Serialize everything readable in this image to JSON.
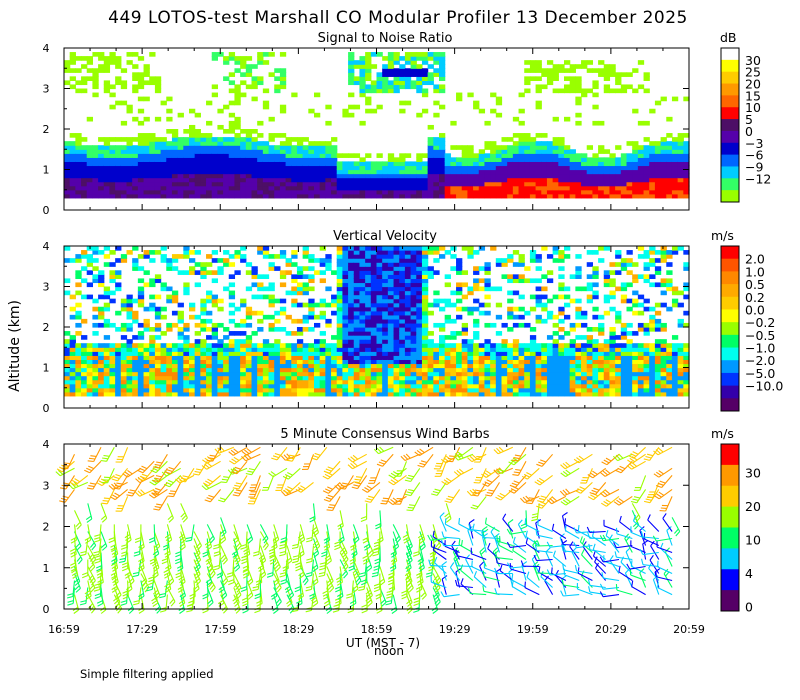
{
  "title": "449 LOTOS-test Marshall CO Modular Profiler 13 December 2025",
  "ylabel": "Altitude (km)",
  "xlabel": "UT  (MST - 7)",
  "xlabel2": "noon",
  "footer": "Simple filtering applied",
  "x_ticks": [
    "16:59",
    "17:29",
    "17:59",
    "18:29",
    "18:59",
    "19:29",
    "19:59",
    "20:29",
    "20:59"
  ],
  "y_ticks": [
    "0",
    "1",
    "2",
    "3",
    "4"
  ],
  "chart_data": [
    {
      "type": "heatmap",
      "title": "Signal to Noise Ratio",
      "units": "dB",
      "x_range_hours": [
        16.983,
        20.983
      ],
      "y_range_km": [
        0,
        4
      ],
      "colorbar_labels": [
        "30",
        "25",
        "20",
        "15",
        "10",
        "5",
        "0",
        "−3",
        "−6",
        "−9",
        "−12"
      ],
      "colorbar_colors": [
        "#ffffff",
        "#ffff00",
        "#ffcc00",
        "#ff9900",
        "#ff6600",
        "#ff0000",
        "#4d0f66",
        "#5500aa",
        "#0000cc",
        "#0066ff",
        "#00ccff",
        "#33ff66",
        "#99ff00"
      ]
    },
    {
      "type": "heatmap",
      "title": "Vertical Velocity",
      "units": "m/s",
      "x_range_hours": [
        16.983,
        20.983
      ],
      "y_range_km": [
        0,
        4
      ],
      "colorbar_labels": [
        "2.0",
        "1.0",
        "0.5",
        "0.2",
        "0.0",
        "−0.2",
        "−0.5",
        "−1.0",
        "−2.0",
        "−5.0",
        "−10.0"
      ],
      "colorbar_colors": [
        "#ff0000",
        "#ff5500",
        "#ff8800",
        "#ffaa00",
        "#ffcc00",
        "#ffff00",
        "#99ff00",
        "#00ff66",
        "#00ffee",
        "#0099ff",
        "#0033ff",
        "#3300aa",
        "#550066"
      ]
    },
    {
      "type": "scatter",
      "title": "5 Minute Consensus Wind Barbs",
      "units": "m/s",
      "x_range_hours": [
        16.983,
        20.983
      ],
      "y_range_km": [
        0,
        4
      ],
      "colorbar_labels": [
        "30",
        "20",
        "10",
        "4",
        "0"
      ],
      "colorbar_colors": [
        "#ff0000",
        "#ff9900",
        "#ffcc00",
        "#99ff00",
        "#00ff66",
        "#00ccff",
        "#0000ff",
        "#550066"
      ]
    }
  ]
}
